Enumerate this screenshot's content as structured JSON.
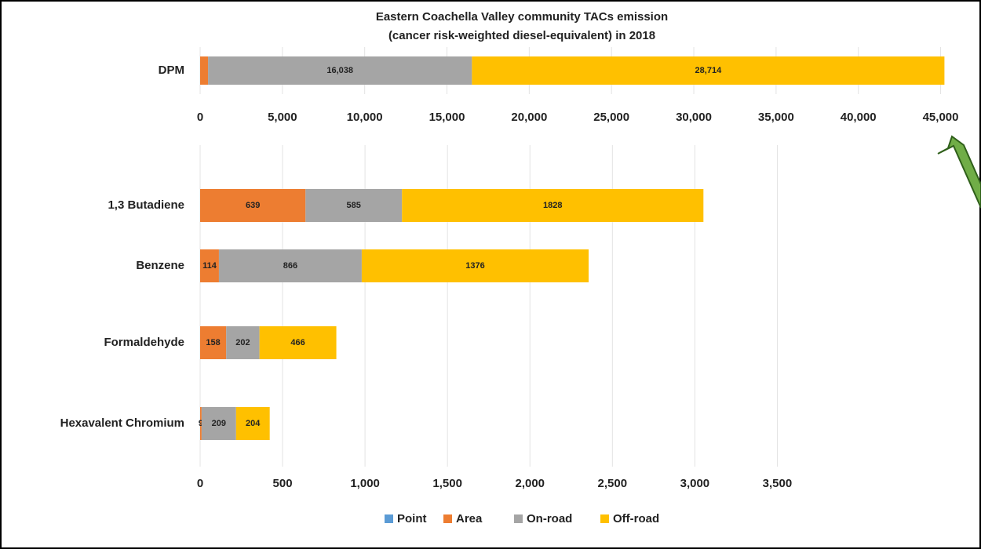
{
  "chart_data": {
    "type": "stacked-bar-horizontal",
    "title": "Eastern Coachella Valley community TACs emission",
    "subtitle": "(cancer risk-weighted diesel-equivalent) in 2018",
    "series": [
      {
        "name": "Point",
        "color": "#5b9bd5"
      },
      {
        "name": "Area",
        "color": "#ed7d31"
      },
      {
        "name": "On-road",
        "color": "#a5a5a5"
      },
      {
        "name": "Off-road",
        "color": "#ffc000"
      }
    ],
    "grid": true,
    "legend": "bottom",
    "panels": [
      {
        "categories": [
          "DPM"
        ],
        "xlim": [
          0,
          46500
        ],
        "xticks": [
          0,
          {
            "value": 5000,
            "label": "5,000"
          },
          {
            "value": 10000,
            "label": "10,000"
          },
          {
            "value": 15000,
            "label": "15,000"
          },
          {
            "value": 20000,
            "label": "20,000"
          },
          {
            "value": 25000,
            "label": "25,000"
          },
          {
            "value": 30000,
            "label": "30,000"
          },
          {
            "value": 35000,
            "label": "35,000"
          },
          {
            "value": 40000,
            "label": "40,000"
          },
          {
            "value": 45000,
            "label": "45,000"
          }
        ],
        "series": [
          {
            "values": [
              0
            ],
            "value_labels": [
              null
            ]
          },
          {
            "values": [
              480
            ],
            "value_labels": [
              null
            ]
          },
          {
            "values": [
              16038
            ],
            "value_labels": [
              "16,038"
            ]
          },
          {
            "values": [
              28714
            ],
            "value_labels": [
              "28,714"
            ]
          }
        ]
      },
      {
        "categories": [
          "1,3 Butadiene",
          "Benzene",
          "Formaldehyde",
          "Hexavalent Chromium"
        ],
        "xlim": [
          0,
          4640
        ],
        "xticks": [
          0,
          500,
          {
            "value": 1000,
            "label": "1,000"
          },
          {
            "value": 1500,
            "label": "1,500"
          },
          {
            "value": 2000,
            "label": "2,000"
          },
          {
            "value": 2500,
            "label": "2,500"
          },
          {
            "value": 3000,
            "label": "3,000"
          },
          {
            "value": 3500,
            "label": "3,500"
          }
        ],
        "series": [
          {
            "values": [
              0,
              0,
              0,
              0
            ]
          },
          {
            "values": [
              639,
              114,
              158,
              9
            ]
          },
          {
            "values": [
              585,
              866,
              202,
              209
            ]
          },
          {
            "values": [
              1828,
              1376,
              466,
              204
            ]
          }
        ]
      }
    ]
  }
}
